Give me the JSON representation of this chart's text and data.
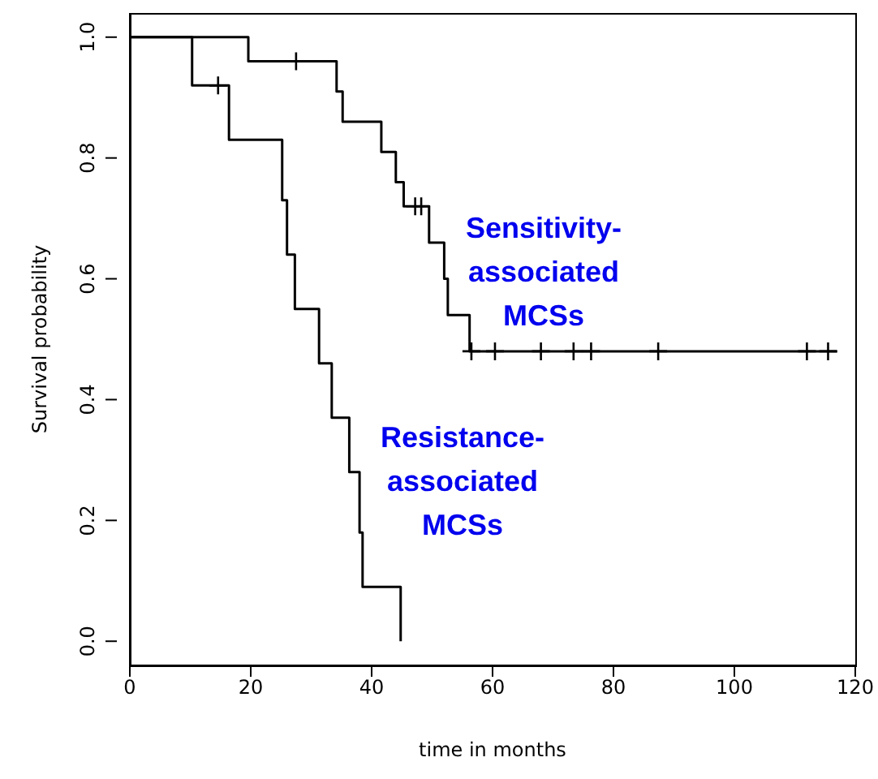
{
  "chart_data": {
    "type": "step",
    "xlabel": "time in months",
    "ylabel": "Survival probability",
    "xlim": [
      0,
      120
    ],
    "xticks": [
      0,
      20,
      40,
      60,
      80,
      100,
      120
    ],
    "ylim": [
      -0.04,
      1.04
    ],
    "yticks": [
      {
        "value": 0,
        "label": "0.0"
      },
      {
        "value": 0.2,
        "label": "0.2"
      },
      {
        "value": 0.4,
        "label": "0.4"
      },
      {
        "value": 0.6,
        "label": "0.6"
      },
      {
        "value": 0.8,
        "label": "0.8"
      },
      {
        "value": 1,
        "label": "1.0"
      }
    ],
    "grid": false,
    "legend": false,
    "series": [
      {
        "color": "#000000",
        "x": [
          0,
          19.6,
          34.2,
          35.2,
          41.6,
          44,
          45.3,
          49.5,
          52,
          52.6,
          56.2,
          117
        ],
        "values": [
          1,
          0.96,
          0.91,
          0.86,
          0.81,
          0.76,
          0.72,
          0.66,
          0.6,
          0.54,
          0.48,
          0.48
        ]
      },
      {
        "color": "#000000",
        "x": [
          0,
          10.3,
          16.4,
          25.2,
          26,
          27.3,
          31.3,
          33.4,
          36.3,
          38,
          38.5,
          44.8
        ],
        "values": [
          1,
          0.92,
          0.83,
          0.73,
          0.64,
          0.55,
          0.46,
          0.37,
          0.28,
          0.18,
          0.09,
          0
        ]
      },
      {
        "type": "scatter",
        "marker": "cross",
        "color": "#000000",
        "x": [
          27.5,
          47.2,
          48.2,
          56.5,
          60.4,
          68,
          73.4,
          76.3,
          87.4,
          112,
          115.5
        ],
        "values": [
          0.96,
          0.72,
          0.72,
          0.48,
          0.48,
          0.48,
          0.48,
          0.48,
          0.48,
          0.48,
          0.48
        ]
      },
      {
        "type": "scatter",
        "marker": "cross",
        "color": "#000000",
        "x": [
          14.6
        ],
        "values": [
          0.92
        ]
      }
    ],
    "annotations": [
      "Sensitivity-associated MCSs",
      "Resistance-associated MCSs"
    ]
  }
}
